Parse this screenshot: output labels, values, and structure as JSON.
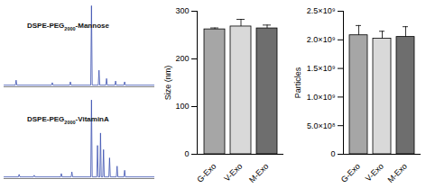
{
  "chart_data": [
    {
      "type": "line",
      "title": "DSPE-PEG2000-Mannose",
      "color": "#3a4fb0",
      "tick_labels": false,
      "xlim": [
        0,
        100
      ],
      "ylim": [
        0,
        100
      ],
      "x": [
        0,
        7.5,
        8,
        8.5,
        31.5,
        32,
        32.5,
        43.5,
        44,
        44.5,
        57.5,
        58,
        58.5,
        62.5,
        63,
        63.5,
        67.5,
        68,
        68.5,
        73.5,
        74,
        74.5,
        79.5,
        80,
        80.5,
        100
      ],
      "values": [
        2,
        2,
        8,
        2,
        2,
        5,
        2,
        2,
        6,
        2,
        2,
        98,
        2,
        2,
        20,
        2,
        2,
        10,
        2,
        2,
        7,
        2,
        2,
        6,
        2,
        2
      ]
    },
    {
      "type": "line",
      "title": "DSPE-PEG2000-VitaminA",
      "color": "#3a4fb0",
      "tick_labels": false,
      "xlim": [
        0,
        100
      ],
      "ylim": [
        0,
        100
      ],
      "x": [
        0,
        9.5,
        10,
        10.5,
        19.5,
        20,
        20.5,
        37.5,
        38,
        38.5,
        44.5,
        45,
        45.5,
        57.5,
        58,
        58.5,
        61.5,
        62,
        62.5,
        63.5,
        64,
        64.5,
        65.5,
        66,
        66.5,
        69.5,
        70,
        70.5,
        74.5,
        75,
        75.5,
        79.5,
        80,
        80.5,
        100
      ],
      "values": [
        2,
        2,
        5,
        2,
        2,
        4,
        2,
        2,
        6,
        2,
        2,
        8,
        2,
        2,
        95,
        2,
        2,
        40,
        2,
        2,
        55,
        2,
        2,
        35,
        2,
        2,
        25,
        2,
        2,
        15,
        2,
        2,
        10,
        2,
        2
      ]
    },
    {
      "type": "bar",
      "ylabel": "Size (nm)",
      "categories": [
        "G-Exo",
        "V-Exo",
        "M-Exo"
      ],
      "values": [
        262,
        268,
        264
      ],
      "errors": [
        3,
        15,
        7
      ],
      "colors": [
        "#a6a6a6",
        "#d9d9d9",
        "#6e6e6e"
      ],
      "ylim": [
        0,
        300
      ],
      "yticks": [
        0,
        100,
        200,
        300
      ]
    },
    {
      "type": "bar",
      "ylabel": "Particles",
      "categories": [
        "G-Exo",
        "V-Exo",
        "M-Exo"
      ],
      "values": [
        2080000000,
        2020000000,
        2050000000
      ],
      "errors": [
        170000000,
        130000000,
        180000000
      ],
      "colors": [
        "#a6a6a6",
        "#d9d9d9",
        "#6e6e6e"
      ],
      "ylim": [
        0,
        2500000000
      ],
      "yticks": [
        0,
        {
          "value": 500000000,
          "label": "5.0×10⁸"
        },
        {
          "value": 1000000000,
          "label": "1.0×10⁹"
        },
        {
          "value": 1500000000,
          "label": "1.5×10⁹"
        },
        {
          "value": 2000000000,
          "label": "2.0×10⁹"
        },
        {
          "value": 2500000000,
          "label": "2.5×10⁹"
        }
      ]
    }
  ]
}
